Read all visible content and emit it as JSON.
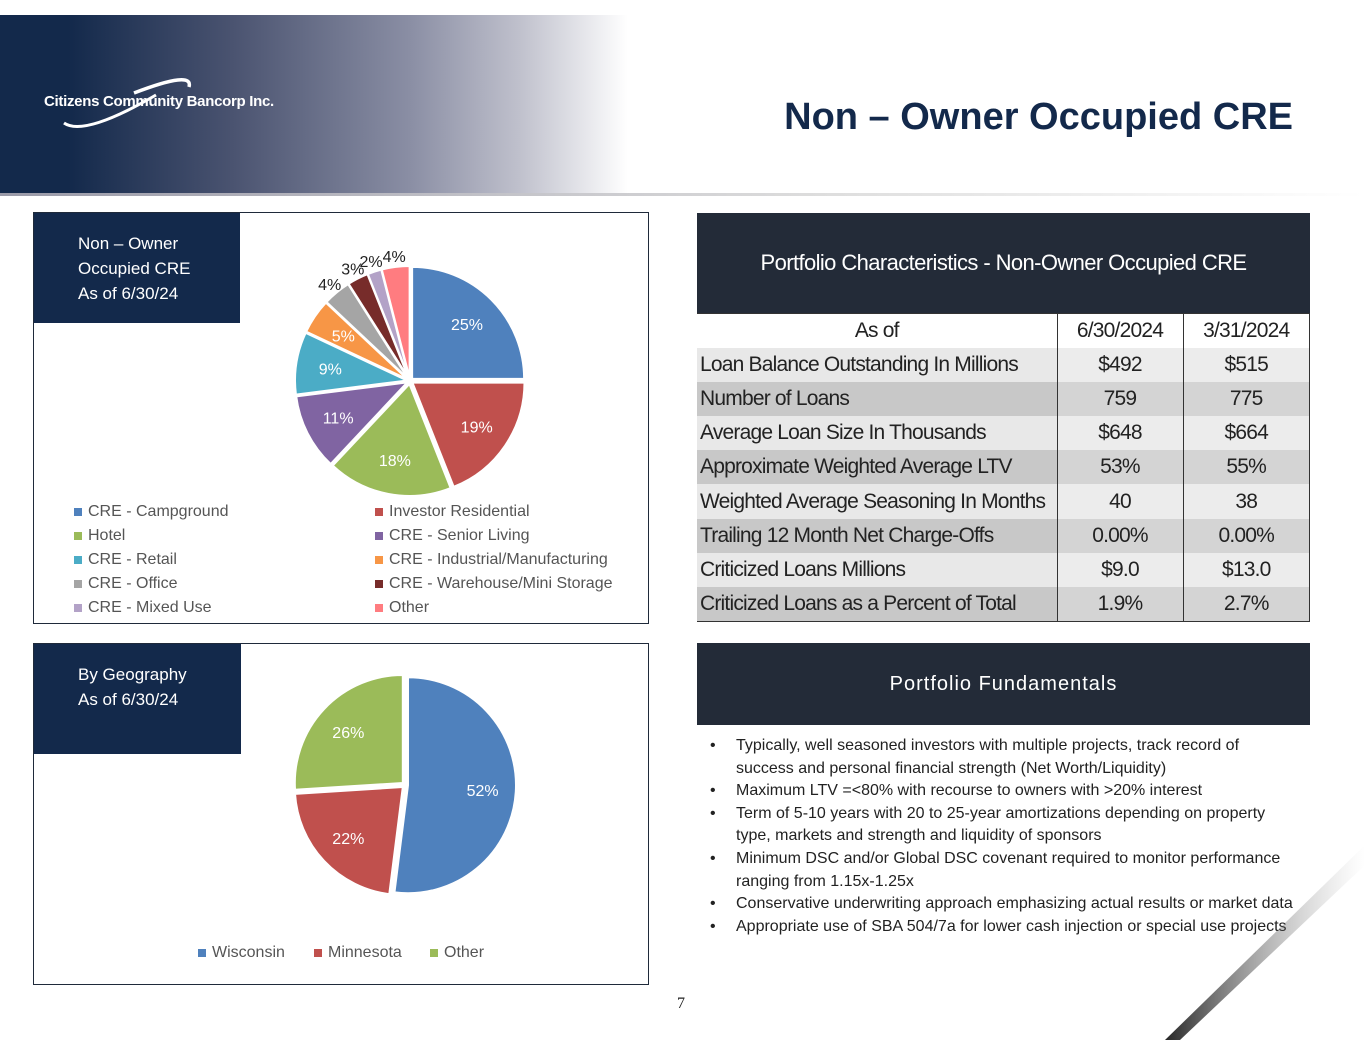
{
  "header": {
    "company": "Citizens Community Bancorp Inc.",
    "title": "Non – Owner Occupied CRE"
  },
  "chart_data": [
    {
      "type": "pie",
      "title_lines": [
        "Non – Owner",
        "Occupied CRE",
        "As of 6/30/24"
      ],
      "categories": [
        "CRE - Campground",
        "Investor Residential",
        "Hotel",
        "CRE - Senior Living",
        "CRE - Retail",
        "CRE - Industrial/Manufacturing",
        "CRE - Office",
        "CRE - Warehouse/Mini Storage",
        "CRE - Mixed Use",
        "Other"
      ],
      "values": [
        25,
        19,
        18,
        11,
        9,
        5,
        4,
        3,
        2,
        4
      ],
      "labels": [
        "25%",
        "19%",
        "18%",
        "11%",
        "9%",
        "5%",
        "4%",
        "3%",
        "2%",
        "4%"
      ],
      "colors": [
        "#4f81bd",
        "#c0504d",
        "#9bbb59",
        "#8064a2",
        "#4bacc6",
        "#f79646",
        "#a5a5a5",
        "#772c2a",
        "#b3a2c7",
        "#ff7c80"
      ],
      "legend": "bottom"
    },
    {
      "type": "pie",
      "title_lines": [
        "By Geography",
        "As of 6/30/24"
      ],
      "categories": [
        "Wisconsin",
        "Minnesota",
        "Other"
      ],
      "values": [
        52,
        22,
        26
      ],
      "labels": [
        "52%",
        "22%",
        "26%"
      ],
      "colors": [
        "#4f81bd",
        "#c0504d",
        "#9bbb59"
      ],
      "legend": "bottom"
    }
  ],
  "table": {
    "title": "Portfolio Characteristics - Non-Owner Occupied CRE",
    "headers": [
      "As of",
      "6/30/2024",
      "3/31/2024"
    ],
    "rows": [
      [
        "Loan Balance Outstanding In Millions",
        "$492",
        "$515"
      ],
      [
        "Number of Loans",
        "759",
        "775"
      ],
      [
        "Average Loan Size In Thousands",
        "$648",
        "$664"
      ],
      [
        "Approximate Weighted Average LTV",
        "53%",
        "55%"
      ],
      [
        "Weighted Average Seasoning In Months",
        "40",
        "38"
      ],
      [
        "Trailing 12 Month Net Charge-Offs",
        "0.00%",
        "0.00%"
      ],
      [
        "Criticized Loans Millions",
        "$9.0",
        "$13.0"
      ],
      [
        "Criticized Loans as a Percent of Total",
        "1.9%",
        "2.7%"
      ]
    ]
  },
  "fundamentals": {
    "title": "Portfolio Fundamentals",
    "bullets": [
      "Typically, well seasoned investors with multiple projects, track record of success and personal financial strength (Net Worth/Liquidity)",
      "Maximum LTV =<80% with recourse to owners with >20% interest",
      "Term of 5-10 years with 20 to 25-year amortizations depending on property type, markets and strength and liquidity of sponsors",
      "Minimum DSC and/or Global DSC covenant required to monitor performance ranging from 1.15x-1.25x",
      "Conservative underwriting approach emphasizing actual results or market data",
      "Appropriate use of SBA 504/7a for lower cash injection or special use projects"
    ]
  },
  "page_number": "7"
}
